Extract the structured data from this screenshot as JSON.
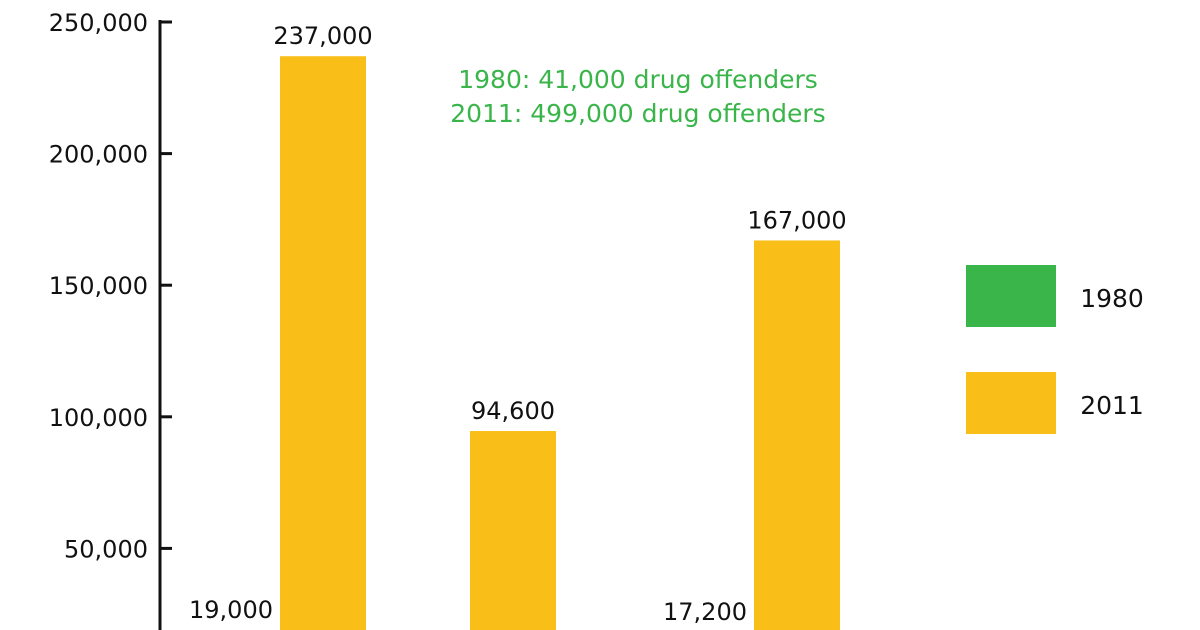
{
  "chart_data": {
    "type": "bar",
    "categories": [
      "",
      "",
      ""
    ],
    "series": [
      {
        "name": "1980",
        "color": "#39b54a",
        "values": [
          19000,
          null,
          17200
        ]
      },
      {
        "name": "2011",
        "color": "#f9bf18",
        "values": [
          237000,
          94600,
          167000
        ]
      }
    ],
    "data_labels": {
      "1980": [
        "19,000",
        null,
        "17,200"
      ],
      "2011": [
        "237,000",
        "94,600",
        "167,000"
      ]
    },
    "yticks": [
      {
        "value": 50000,
        "label": "50,000"
      },
      {
        "value": 100000,
        "label": "100,000"
      },
      {
        "value": 150000,
        "label": "150,000"
      },
      {
        "value": 200000,
        "label": "200,000"
      },
      {
        "value": 250000,
        "label": "250,000"
      }
    ],
    "ylim": [
      19000,
      250000
    ],
    "title": "",
    "xlabel": "",
    "ylabel": "",
    "annotations": [
      "1980: 41,000 drug offenders",
      "2011: 499,000 drug offenders"
    ],
    "annotation_color": "#39b54a",
    "legend": {
      "position": "right",
      "entries": [
        {
          "label": "1980",
          "color": "#39b54a"
        },
        {
          "label": "2011",
          "color": "#f9bf18"
        }
      ]
    },
    "grid": false
  }
}
